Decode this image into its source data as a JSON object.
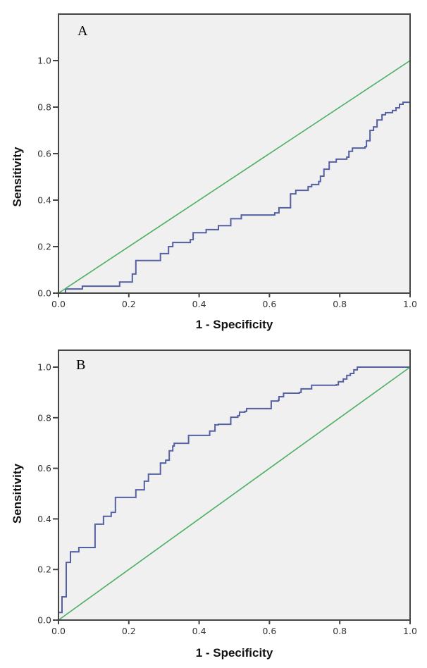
{
  "chart_data": [
    {
      "type": "line",
      "panel_label": "A",
      "title": "",
      "xlabel": "1 - Specificity",
      "ylabel": "Sensitivity",
      "xlim": [
        0,
        1
      ],
      "ylim": [
        0,
        1
      ],
      "x_ticks": [
        "0.0",
        "0.2",
        "0.4",
        "0.6",
        "0.8",
        "1.0"
      ],
      "y_ticks": [
        "0.0",
        "0.2",
        "0.4",
        "0.6",
        "0.8",
        "1.0"
      ],
      "x_tick_values": [
        0,
        0.2,
        0.4,
        0.6,
        0.8,
        1.0
      ],
      "y_tick_values": [
        0,
        0.2,
        0.4,
        0.6,
        0.8,
        1.0
      ],
      "grid": false,
      "legend": "none",
      "background": "#f0f0f0",
      "series": [
        {
          "name": "ROC curve",
          "color": "#5560a3",
          "step": true,
          "x": [
            0,
            0.02,
            0.068,
            0.174,
            0.21,
            0.22,
            0.29,
            0.313,
            0.325,
            0.375,
            0.383,
            0.42,
            0.455,
            0.49,
            0.52,
            0.615,
            0.627,
            0.66,
            0.675,
            0.71,
            0.72,
            0.74,
            0.745,
            0.755,
            0.77,
            0.79,
            0.82,
            0.826,
            0.836,
            0.872,
            0.876,
            0.886,
            0.896,
            0.906,
            0.92,
            0.93,
            0.95,
            0.96,
            0.97,
            0.98,
            1.0,
            1.0
          ],
          "y": [
            0,
            0.018,
            0.03,
            0.048,
            0.082,
            0.14,
            0.17,
            0.2,
            0.218,
            0.23,
            0.26,
            0.273,
            0.29,
            0.32,
            0.336,
            0.345,
            0.367,
            0.427,
            0.442,
            0.458,
            0.467,
            0.48,
            0.503,
            0.533,
            0.564,
            0.576,
            0.585,
            0.61,
            0.624,
            0.63,
            0.655,
            0.7,
            0.715,
            0.745,
            0.767,
            0.776,
            0.785,
            0.797,
            0.812,
            0.821,
            0.821,
            1.0
          ]
        },
        {
          "name": "Reference line",
          "color": "#4caf62",
          "step": false,
          "x": [
            0,
            1
          ],
          "y": [
            0,
            1
          ]
        }
      ]
    },
    {
      "type": "line",
      "panel_label": "B",
      "title": "",
      "xlabel": "1 - Specificity",
      "ylabel": "Sensitivity",
      "xlim": [
        0,
        1
      ],
      "ylim": [
        0,
        1
      ],
      "x_ticks": [
        "0.0",
        "0.2",
        "0.4",
        "0.6",
        "0.8",
        "1.0"
      ],
      "y_ticks": [
        "0.0",
        "0.2",
        "0.4",
        "0.6",
        "0.8",
        "1.0"
      ],
      "x_tick_values": [
        0,
        0.2,
        0.4,
        0.6,
        0.8,
        1.0
      ],
      "y_tick_values": [
        0,
        0.2,
        0.4,
        0.6,
        0.8,
        1.0
      ],
      "grid": false,
      "legend": "none",
      "background": "#f0f0f0",
      "series": [
        {
          "name": "ROC curve",
          "color": "#5560a3",
          "step": true,
          "x": [
            0,
            0.01,
            0.022,
            0.034,
            0.058,
            0.104,
            0.128,
            0.15,
            0.162,
            0.22,
            0.244,
            0.256,
            0.29,
            0.305,
            0.315,
            0.325,
            0.329,
            0.37,
            0.43,
            0.445,
            0.455,
            0.49,
            0.51,
            0.515,
            0.53,
            0.535,
            0.605,
            0.625,
            0.627,
            0.64,
            0.685,
            0.69,
            0.72,
            0.79,
            0.796,
            0.81,
            0.82,
            0.83,
            0.84,
            0.85,
            1.0
          ],
          "y": [
            0.03,
            0.092,
            0.228,
            0.27,
            0.287,
            0.379,
            0.41,
            0.426,
            0.485,
            0.515,
            0.549,
            0.577,
            0.621,
            0.632,
            0.669,
            0.688,
            0.699,
            0.73,
            0.747,
            0.772,
            0.774,
            0.802,
            0.808,
            0.822,
            0.825,
            0.836,
            0.866,
            0.869,
            0.883,
            0.897,
            0.9,
            0.914,
            0.928,
            0.93,
            0.942,
            0.953,
            0.967,
            0.975,
            0.989,
            1.0,
            1.0
          ]
        },
        {
          "name": "Reference line",
          "color": "#4caf62",
          "step": false,
          "x": [
            0,
            1
          ],
          "y": [
            0,
            1
          ]
        }
      ]
    }
  ]
}
